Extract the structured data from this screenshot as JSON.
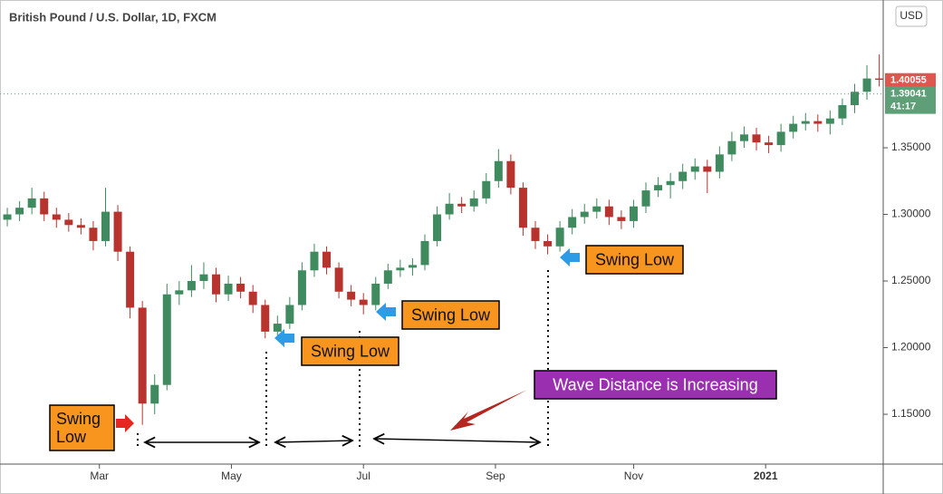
{
  "chart_data": {
    "type": "candlestick",
    "title": "British Pound / U.S. Dollar, 1D, FXCM",
    "currency": "USD",
    "x": [
      0,
      4,
      8,
      12,
      16,
      20,
      24,
      28,
      32,
      36,
      40,
      44,
      48,
      52,
      56,
      60,
      64,
      68,
      72,
      76,
      80,
      84,
      88,
      92,
      96,
      100,
      104,
      108,
      112,
      116,
      120,
      124,
      128,
      132,
      136,
      140,
      144,
      148,
      152,
      156,
      160,
      164,
      168,
      172,
      176,
      180,
      184,
      188,
      192,
      196,
      200,
      204,
      208,
      212,
      216,
      220,
      224,
      228,
      232,
      236,
      240,
      244,
      248,
      252,
      256,
      260,
      264,
      268,
      272,
      276,
      280,
      284
    ],
    "open": [
      1.296,
      1.3,
      1.305,
      1.312,
      1.3,
      1.296,
      1.292,
      1.29,
      1.28,
      1.302,
      1.272,
      1.23,
      1.158,
      1.172,
      1.24,
      1.243,
      1.25,
      1.255,
      1.24,
      1.248,
      1.242,
      1.232,
      1.212,
      1.218,
      1.232,
      1.258,
      1.272,
      1.26,
      1.242,
      1.236,
      1.232,
      1.248,
      1.258,
      1.26,
      1.262,
      1.28,
      1.3,
      1.308,
      1.306,
      1.312,
      1.325,
      1.34,
      1.32,
      1.29,
      1.28,
      1.276,
      1.29,
      1.298,
      1.302,
      1.306,
      1.298,
      1.295,
      1.306,
      1.318,
      1.322,
      1.325,
      1.332,
      1.336,
      1.332,
      1.345,
      1.355,
      1.36,
      1.354,
      1.352,
      1.362,
      1.368,
      1.37,
      1.368,
      1.372,
      1.382,
      1.392,
      1.402
    ],
    "high": [
      1.305,
      1.31,
      1.32,
      1.317,
      1.305,
      1.301,
      1.297,
      1.295,
      1.32,
      1.307,
      1.276,
      1.235,
      1.18,
      1.248,
      1.25,
      1.262,
      1.264,
      1.26,
      1.254,
      1.253,
      1.247,
      1.236,
      1.224,
      1.238,
      1.264,
      1.278,
      1.276,
      1.264,
      1.247,
      1.241,
      1.253,
      1.263,
      1.266,
      1.267,
      1.285,
      1.306,
      1.316,
      1.313,
      1.318,
      1.331,
      1.349,
      1.345,
      1.324,
      1.295,
      1.285,
      1.295,
      1.304,
      1.308,
      1.312,
      1.311,
      1.303,
      1.311,
      1.324,
      1.328,
      1.331,
      1.338,
      1.342,
      1.341,
      1.351,
      1.362,
      1.366,
      1.365,
      1.359,
      1.368,
      1.374,
      1.376,
      1.375,
      1.378,
      1.387,
      1.398,
      1.412,
      1.42
    ],
    "low": [
      1.291,
      1.295,
      1.3,
      1.295,
      1.29,
      1.287,
      1.285,
      1.273,
      1.276,
      1.265,
      1.222,
      1.142,
      1.15,
      1.168,
      1.232,
      1.238,
      1.244,
      1.234,
      1.235,
      1.237,
      1.226,
      1.207,
      1.208,
      1.214,
      1.228,
      1.253,
      1.255,
      1.237,
      1.231,
      1.225,
      1.228,
      1.244,
      1.253,
      1.254,
      1.258,
      1.276,
      1.296,
      1.301,
      1.302,
      1.308,
      1.32,
      1.315,
      1.284,
      1.274,
      1.27,
      1.272,
      1.285,
      1.293,
      1.297,
      1.292,
      1.289,
      1.29,
      1.301,
      1.313,
      1.312,
      1.319,
      1.326,
      1.316,
      1.327,
      1.34,
      1.35,
      1.348,
      1.346,
      1.347,
      1.357,
      1.363,
      1.362,
      1.36,
      1.367,
      1.376,
      1.386,
      1.396
    ],
    "close": [
      1.3,
      1.305,
      1.312,
      1.3,
      1.296,
      1.292,
      1.29,
      1.28,
      1.302,
      1.272,
      1.23,
      1.158,
      1.172,
      1.24,
      1.243,
      1.25,
      1.255,
      1.24,
      1.248,
      1.242,
      1.232,
      1.212,
      1.218,
      1.232,
      1.258,
      1.272,
      1.26,
      1.242,
      1.236,
      1.232,
      1.248,
      1.258,
      1.26,
      1.262,
      1.28,
      1.3,
      1.308,
      1.306,
      1.312,
      1.325,
      1.34,
      1.32,
      1.29,
      1.28,
      1.276,
      1.29,
      1.298,
      1.302,
      1.306,
      1.298,
      1.295,
      1.306,
      1.318,
      1.322,
      1.325,
      1.332,
      1.336,
      1.332,
      1.345,
      1.355,
      1.36,
      1.354,
      1.352,
      1.362,
      1.368,
      1.37,
      1.368,
      1.372,
      1.382,
      1.392,
      1.402,
      1.401
    ],
    "up_color": "#3f8a5e",
    "down_color": "#b8332e",
    "xlim": [
      -0.9,
      285.3
    ],
    "ylim": [
      1.1126,
      1.4575
    ],
    "xticks": [
      {
        "value": 30,
        "label": "Mar"
      },
      {
        "value": 73,
        "label": "May"
      },
      {
        "value": 116,
        "label": "Jul"
      },
      {
        "value": 159,
        "label": "Sep"
      },
      {
        "value": 204,
        "label": "Nov"
      },
      {
        "value": 247,
        "label": "2021"
      }
    ],
    "yticks": [
      {
        "value": 1.15,
        "label": "1.15000"
      },
      {
        "value": 1.2,
        "label": "1.20000"
      },
      {
        "value": 1.25,
        "label": "1.25000"
      },
      {
        "value": 1.3,
        "label": "1.30000"
      },
      {
        "value": 1.35,
        "label": "1.35000"
      }
    ],
    "price_tags": [
      {
        "value": 1.40055,
        "color": "#e0564f"
      },
      {
        "value": 1.39041,
        "color": "#5f9f78",
        "countdown": "41:17"
      }
    ],
    "annotations": [
      {
        "lines": [
          "Swing",
          "Low"
        ],
        "color": "#f7951f"
      },
      {
        "lines": [
          "Swing Low"
        ],
        "color": "#f7951f"
      },
      {
        "lines": [
          "Swing Low"
        ],
        "color": "#f7951f"
      },
      {
        "lines": [
          "Swing Low"
        ],
        "color": "#f7951f"
      },
      {
        "lines": [
          "Wave Distance is Increasing"
        ],
        "color": "#9a2fb0"
      }
    ]
  }
}
